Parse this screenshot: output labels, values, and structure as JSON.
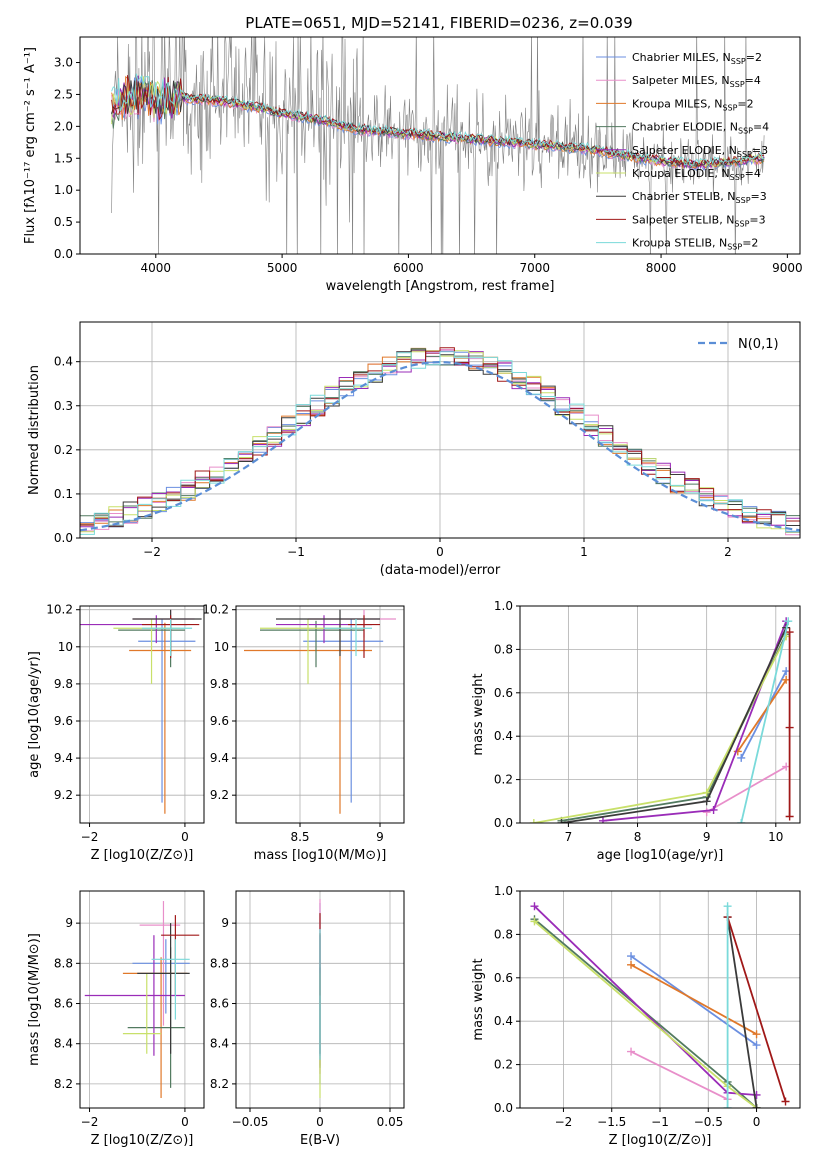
{
  "figure_title": "PLATE=0651, MJD=52141, FIBERID=0236, z=0.039",
  "colors": {
    "s1": "#6b8fe0",
    "s2": "#e88fca",
    "s3": "#e0782a",
    "s4": "#527a60",
    "s5": "#9a2cb8",
    "s6": "#c8e06a",
    "s7": "#3a3a3a",
    "s8": "#a01818",
    "s9": "#7adada",
    "data": "#808080",
    "normal": "#5b8ed6"
  },
  "series_names": [
    {
      "name": "Chabrier MILES, N",
      "sub": "SSP",
      "val": "=2"
    },
    {
      "name": "Salpeter MILES, N",
      "sub": "SSP",
      "val": "=4"
    },
    {
      "name": "Kroupa MILES, N",
      "sub": "SSP",
      "val": "=2"
    },
    {
      "name": "Chabrier ELODIE, N",
      "sub": "SSP",
      "val": "=4"
    },
    {
      "name": "Salpeter ELODIE, N",
      "sub": "SSP",
      "val": "=3"
    },
    {
      "name": "Kroupa ELODIE, N",
      "sub": "SSP",
      "val": "=4"
    },
    {
      "name": "Chabrier STELIB, N",
      "sub": "SSP",
      "val": "=3"
    },
    {
      "name": "Salpeter STELIB, N",
      "sub": "SSP",
      "val": "=3"
    },
    {
      "name": "Kroupa STELIB, N",
      "sub": "SSP",
      "val": "=2"
    }
  ],
  "chart_data": [
    {
      "id": "spectrum",
      "type": "line",
      "xlabel": "wavelength [Angstrom, rest frame]",
      "ylabel": "Flux [fλ10⁻¹⁷ erg cm⁻² s⁻¹ A⁻¹]",
      "xlim": [
        3400,
        9100
      ],
      "ylim": [
        0,
        3.4
      ],
      "xticks": [
        4000,
        5000,
        6000,
        7000,
        8000,
        9000
      ],
      "yticks": [
        0.0,
        0.5,
        1.0,
        1.5,
        2.0,
        2.5,
        3.0
      ],
      "continuum": {
        "x": [
          3650,
          3750,
          3900,
          4000,
          4200,
          4500,
          4800,
          5000,
          5300,
          5600,
          5900,
          6200,
          6500,
          6800,
          7100,
          7400,
          7700,
          8000,
          8300,
          8600,
          8800
        ],
        "y": [
          2.3,
          2.45,
          2.5,
          2.4,
          2.45,
          2.4,
          2.3,
          2.2,
          2.1,
          1.95,
          1.9,
          1.85,
          1.8,
          1.75,
          1.7,
          1.65,
          1.55,
          1.45,
          1.4,
          1.45,
          1.5
        ]
      },
      "data_x_range": [
        3650,
        8820
      ],
      "legend": "top-right"
    },
    {
      "id": "residuals",
      "type": "histogram",
      "xlabel": "(data-model)/error",
      "ylabel": "Normed distribution",
      "xlim": [
        -2.5,
        2.5
      ],
      "ylim": [
        0,
        0.49
      ],
      "xticks": [
        -2,
        -1,
        0,
        1,
        2
      ],
      "yticks": [
        0.0,
        0.1,
        0.2,
        0.3,
        0.4
      ],
      "bin_width": 0.1,
      "base": [
        0.017,
        0.021,
        0.026,
        0.032,
        0.039,
        0.047,
        0.057,
        0.068,
        0.08,
        0.094,
        0.11,
        0.127,
        0.146,
        0.166,
        0.188,
        0.21,
        0.233,
        0.256,
        0.279,
        0.301,
        0.323,
        0.343,
        0.361,
        0.377,
        0.39,
        0.4,
        0.407,
        0.411,
        0.411,
        0.407,
        0.4,
        0.39,
        0.377,
        0.361,
        0.343,
        0.323,
        0.301,
        0.279,
        0.256,
        0.233,
        0.21,
        0.188,
        0.166,
        0.146,
        0.127,
        0.11,
        0.094,
        0.08,
        0.068,
        0.057,
        0.047,
        0.039,
        0.032,
        0.026,
        0.021,
        0.017
      ],
      "normal_label": "N(0,1)",
      "legend": "top-right"
    },
    {
      "id": "age_vs_Z",
      "type": "errorbar",
      "xlabel": "Z [log10(Z/Z⊙)]",
      "ylabel": "age  [log10(age/yr)]",
      "xlim": [
        -2.2,
        0.4
      ],
      "ylim": [
        9.05,
        10.22
      ],
      "xticks": [
        -2,
        0
      ],
      "yticks": [
        9.2,
        9.4,
        9.6,
        9.8,
        10.0,
        10.2
      ],
      "points": [
        {
          "x": -0.48,
          "y": 10.03,
          "xerr": [
            0.5,
            0.7
          ],
          "yerr": [
            0.87,
            0.12
          ]
        },
        {
          "x": -0.3,
          "y": 10.15,
          "xerr": [
            0.8,
            0.5
          ],
          "yerr": [
            0.1,
            0.05
          ]
        },
        {
          "x": -0.42,
          "y": 9.98,
          "xerr": [
            0.75,
            0.55
          ],
          "yerr": [
            0.88,
            0.15
          ]
        },
        {
          "x": -0.3,
          "y": 10.09,
          "xerr": [
            1.1,
            0.3
          ],
          "yerr": [
            0.2,
            0.05
          ]
        },
        {
          "x": -0.6,
          "y": 10.12,
          "xerr": [
            1.6,
            0.65
          ],
          "yerr": [
            0.1,
            0.05
          ]
        },
        {
          "x": -0.7,
          "y": 10.1,
          "xerr": [
            0.8,
            0.6
          ],
          "yerr": [
            0.3,
            0.05
          ]
        },
        {
          "x": -0.3,
          "y": 10.15,
          "xerr": [
            0.8,
            0.65
          ],
          "yerr": [
            0.2,
            0.05
          ]
        },
        {
          "x": -0.3,
          "y": 10.12,
          "xerr": [
            0.6,
            0.6
          ],
          "yerr": [
            0.18,
            0.05
          ]
        },
        {
          "x": -0.3,
          "y": 10.1,
          "xerr": [
            0.6,
            0.45
          ],
          "yerr": [
            0.15,
            0.05
          ]
        }
      ]
    },
    {
      "id": "age_vs_mass",
      "type": "errorbar",
      "xlabel": "mass [log10(M/M⊙)]",
      "xlim": [
        8.1,
        9.15
      ],
      "ylim": [
        9.05,
        10.22
      ],
      "xticks": [
        8.5,
        9.0
      ],
      "yticks": [
        9.2,
        9.4,
        9.6,
        9.8,
        10.0,
        10.2
      ],
      "points": [
        {
          "x": 8.82,
          "y": 10.03,
          "xerr": [
            0.3,
            0.2
          ],
          "yerr": [
            0.87,
            0.12
          ]
        },
        {
          "x": 8.9,
          "y": 10.15,
          "xerr": [
            0.35,
            0.2
          ],
          "yerr": [
            0.1,
            0.05
          ]
        },
        {
          "x": 8.75,
          "y": 9.98,
          "xerr": [
            0.6,
            0.2
          ],
          "yerr": [
            0.88,
            0.15
          ]
        },
        {
          "x": 8.6,
          "y": 10.09,
          "xerr": [
            0.35,
            0.3
          ],
          "yerr": [
            0.2,
            0.05
          ]
        },
        {
          "x": 8.65,
          "y": 10.12,
          "xerr": [
            0.3,
            0.3
          ],
          "yerr": [
            0.1,
            0.05
          ]
        },
        {
          "x": 8.55,
          "y": 10.1,
          "xerr": [
            0.3,
            0.3
          ],
          "yerr": [
            0.3,
            0.05
          ]
        },
        {
          "x": 8.75,
          "y": 10.15,
          "xerr": [
            0.4,
            0.25
          ],
          "yerr": [
            0.2,
            0.05
          ]
        },
        {
          "x": 8.9,
          "y": 10.12,
          "xerr": [
            0.1,
            0.1
          ],
          "yerr": [
            0.18,
            0.05
          ]
        },
        {
          "x": 8.85,
          "y": 10.1,
          "xerr": [
            0.2,
            0.1
          ],
          "yerr": [
            0.15,
            0.05
          ]
        }
      ]
    },
    {
      "id": "weight_vs_age",
      "type": "line",
      "xlabel": "age  [log10(age/yr)]",
      "ylabel": "mass weight",
      "xlim": [
        6.3,
        10.35
      ],
      "ylim": [
        0,
        1.0
      ],
      "xticks": [
        7,
        8,
        9,
        10
      ],
      "yticks": [
        0.0,
        0.2,
        0.4,
        0.6,
        0.8,
        1.0
      ],
      "series": [
        {
          "x": [
            9.5,
            10.15
          ],
          "y": [
            0.3,
            0.7
          ]
        },
        {
          "x": [
            9.0,
            10.15
          ],
          "y": [
            0.05,
            0.26
          ]
        },
        {
          "x": [
            9.45,
            10.15
          ],
          "y": [
            0.33,
            0.66
          ]
        },
        {
          "x": [
            6.9,
            9.0,
            10.15
          ],
          "y": [
            0.01,
            0.12,
            0.87
          ]
        },
        {
          "x": [
            7.5,
            9.1,
            10.15
          ],
          "y": [
            0.01,
            0.06,
            0.93
          ]
        },
        {
          "x": [
            6.5,
            9.0,
            10.15
          ],
          "y": [
            0.0,
            0.14,
            0.86
          ]
        },
        {
          "x": [
            6.9,
            9.0,
            10.15
          ],
          "y": [
            0.0,
            0.1,
            0.9
          ]
        },
        {
          "x": [
            10.2,
            10.2,
            10.2
          ],
          "y": [
            0.03,
            0.44,
            0.88
          ]
        },
        {
          "x": [
            9.5,
            10.18
          ],
          "y": [
            0.0,
            0.93
          ]
        }
      ]
    },
    {
      "id": "mass_vs_Z",
      "type": "errorbar",
      "xlabel": "Z [log10(Z/Z⊙)]",
      "ylabel": "mass [log10(M/M⊙)]",
      "xlim": [
        -2.2,
        0.4
      ],
      "ylim": [
        8.08,
        9.16
      ],
      "xticks": [
        -2,
        0
      ],
      "yticks": [
        8.2,
        8.4,
        8.6,
        8.8,
        9.0
      ],
      "points": [
        {
          "x": -0.4,
          "y": 8.8,
          "xerr": [
            0.7,
            0.5
          ],
          "yerr": [
            0.25,
            0.12
          ]
        },
        {
          "x": -0.45,
          "y": 8.99,
          "xerr": [
            0.5,
            0.35
          ],
          "yerr": [
            0.5,
            0.12
          ]
        },
        {
          "x": -0.5,
          "y": 8.75,
          "xerr": [
            0.8,
            0.55
          ],
          "yerr": [
            0.62,
            0.08
          ]
        },
        {
          "x": -0.3,
          "y": 8.48,
          "xerr": [
            0.9,
            0.3
          ],
          "yerr": [
            0.3,
            0.4
          ]
        },
        {
          "x": -0.65,
          "y": 8.64,
          "xerr": [
            1.45,
            0.65
          ],
          "yerr": [
            0.3,
            0.3
          ]
        },
        {
          "x": -0.8,
          "y": 8.45,
          "xerr": [
            0.5,
            0.3
          ],
          "yerr": [
            0.1,
            0.3
          ]
        },
        {
          "x": -0.3,
          "y": 8.75,
          "xerr": [
            0.7,
            0.4
          ],
          "yerr": [
            0.4,
            0.25
          ]
        },
        {
          "x": -0.2,
          "y": 8.94,
          "xerr": [
            0.3,
            0.5
          ],
          "yerr": [
            0.3,
            0.1
          ]
        },
        {
          "x": -0.2,
          "y": 8.82,
          "xerr": [
            0.5,
            0.3
          ],
          "yerr": [
            0.3,
            0.1
          ]
        }
      ]
    },
    {
      "id": "mass_vs_EBV",
      "type": "errorbar",
      "xlabel": "E(B-V)",
      "xlim": [
        -0.06,
        0.06
      ],
      "ylim": [
        8.08,
        9.16
      ],
      "xticks": [
        -0.05,
        0.0,
        0.05
      ],
      "yticks": [
        8.2,
        8.4,
        8.6,
        8.8,
        9.0
      ],
      "points": [
        {
          "x": 0.0,
          "y": 8.8,
          "xerr": [
            0,
            0
          ],
          "yerr": [
            0.6,
            0.3
          ]
        },
        {
          "x": 0.0,
          "y": 8.99,
          "xerr": [
            0,
            0
          ],
          "yerr": [
            0.7,
            0.13
          ]
        },
        {
          "x": 0.0,
          "y": 8.75,
          "xerr": [
            0,
            0
          ],
          "yerr": [
            0.5,
            0.2
          ]
        },
        {
          "x": 0.0,
          "y": 8.48,
          "xerr": [
            0,
            0
          ],
          "yerr": [
            0.2,
            0.3
          ]
        },
        {
          "x": 0.0,
          "y": 8.64,
          "xerr": [
            0,
            0
          ],
          "yerr": [
            0.3,
            0.3
          ]
        },
        {
          "x": 0.0,
          "y": 8.45,
          "xerr": [
            0,
            0
          ],
          "yerr": [
            0.32,
            0.3
          ]
        },
        {
          "x": 0.0,
          "y": 8.75,
          "xerr": [
            0,
            0
          ],
          "yerr": [
            0.4,
            0.2
          ]
        },
        {
          "x": 0.0,
          "y": 8.94,
          "xerr": [
            0,
            0
          ],
          "yerr": [
            0.3,
            0.11
          ]
        },
        {
          "x": 0.0,
          "y": 8.82,
          "xerr": [
            0,
            0
          ],
          "yerr": [
            0.5,
            0.15
          ]
        }
      ]
    },
    {
      "id": "weight_vs_Z",
      "type": "line",
      "xlabel": "Z [log10(Z/Z⊙)]",
      "ylabel": "mass weight",
      "xlim": [
        -2.45,
        0.45
      ],
      "ylim": [
        0,
        1.0
      ],
      "xticks": [
        -2.0,
        -1.5,
        -1.0,
        -0.5,
        0.0
      ],
      "yticks": [
        0.0,
        0.2,
        0.4,
        0.6,
        0.8,
        1.0
      ],
      "series": [
        {
          "x": [
            -1.3,
            0.0
          ],
          "y": [
            0.7,
            0.29
          ]
        },
        {
          "x": [
            -1.3,
            -0.3
          ],
          "y": [
            0.26,
            0.04
          ]
        },
        {
          "x": [
            -1.3,
            0.0
          ],
          "y": [
            0.66,
            0.34
          ]
        },
        {
          "x": [
            -2.3,
            -0.3,
            0.0
          ],
          "y": [
            0.87,
            0.12,
            0.0
          ]
        },
        {
          "x": [
            -2.3,
            -0.3,
            0.0
          ],
          "y": [
            0.93,
            0.07,
            0.06
          ]
        },
        {
          "x": [
            -2.3,
            -0.3,
            0.0
          ],
          "y": [
            0.86,
            0.1,
            0.0
          ]
        },
        {
          "x": [
            -0.3,
            0.0
          ],
          "y": [
            0.88,
            0.0
          ]
        },
        {
          "x": [
            -0.3,
            0.3
          ],
          "y": [
            0.88,
            0.03
          ]
        },
        {
          "x": [
            -0.3,
            -0.3
          ],
          "y": [
            0.0,
            0.93
          ]
        }
      ]
    }
  ]
}
